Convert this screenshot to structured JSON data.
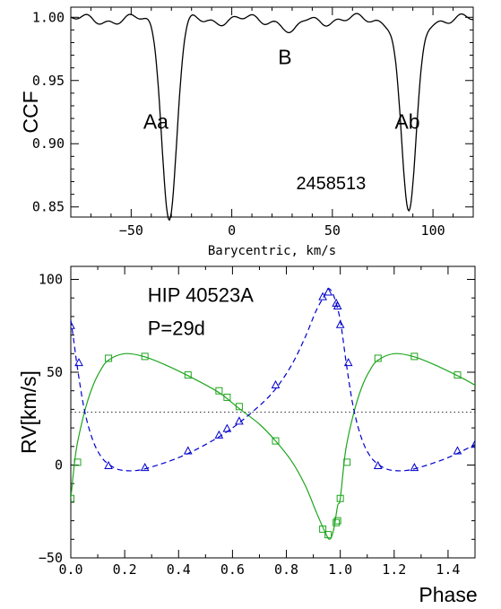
{
  "chart_data": [
    {
      "type": "line",
      "ylabel": "CCF",
      "xlabel": "Barycentric, km/s",
      "xlim": [
        -80,
        120
      ],
      "ylim": [
        0.842,
        1.008
      ],
      "xticks": [
        -50,
        0,
        50,
        100
      ],
      "yticks": [
        0.85,
        0.9,
        0.95,
        1.0
      ],
      "xtick_labels": [
        "−50",
        "0",
        "50",
        "100"
      ],
      "ytick_labels": [
        "0.85",
        "0.90",
        "0.95",
        "1.00"
      ],
      "grid": false,
      "baseline": 1.0,
      "components": [
        {
          "name": "Aa",
          "center": -31,
          "depth": 0.158,
          "sigma": 3.6
        },
        {
          "name": "B",
          "center": 30,
          "depth": 0.012,
          "sigma": 3.0
        },
        {
          "name": "Ab",
          "center": 88,
          "depth": 0.152,
          "sigma": 3.8
        }
      ],
      "annotations": [
        {
          "text": "Aa",
          "x": -44,
          "y": 0.912
        },
        {
          "text": "B",
          "x": 23,
          "y": 0.963
        },
        {
          "text": "Ab",
          "x": 81,
          "y": 0.912
        },
        {
          "text": "2458513",
          "x": 32,
          "y": 0.864
        }
      ],
      "colors": {
        "curve": "#000000"
      }
    },
    {
      "type": "line",
      "ylabel": "RV[km/s]",
      "xlabel": "Phase",
      "xlim": [
        0.0,
        1.5
      ],
      "ylim": [
        -50,
        107
      ],
      "xticks": [
        0.0,
        0.2,
        0.4,
        0.6,
        0.8,
        1.0,
        1.2,
        1.4
      ],
      "yticks": [
        -50,
        0,
        50,
        100
      ],
      "xtick_labels": [
        "0.0",
        "0.2",
        "0.4",
        "0.6",
        "0.8",
        "1.0",
        "1.2",
        "1.4"
      ],
      "ytick_labels": [
        "−50",
        "0",
        "50",
        "100"
      ],
      "grid": false,
      "title_lines": [
        "HIP 40523A",
        "P=29d"
      ],
      "systemic_velocity": 28.5,
      "series": [
        {
          "color": "#1ea51e",
          "marker": "square",
          "line": "solid",
          "curve": [
            [
              0.0,
              -18
            ],
            [
              0.02,
              8
            ],
            [
              0.05,
              28
            ],
            [
              0.08,
              42
            ],
            [
              0.11,
              51
            ],
            [
              0.14,
              56.5
            ],
            [
              0.2,
              60
            ],
            [
              0.27,
              58.5
            ],
            [
              0.35,
              54
            ],
            [
              0.45,
              47
            ],
            [
              0.55,
              39
            ],
            [
              0.62,
              31
            ],
            [
              0.7,
              22
            ],
            [
              0.76,
              13
            ],
            [
              0.82,
              2
            ],
            [
              0.87,
              -11
            ],
            [
              0.91,
              -25
            ],
            [
              0.94,
              -35
            ],
            [
              0.96,
              -40
            ],
            [
              0.975,
              -35
            ],
            [
              0.99,
              -22
            ],
            [
              1.0,
              -18
            ],
            [
              1.02,
              8
            ],
            [
              1.05,
              28
            ],
            [
              1.08,
              42
            ],
            [
              1.11,
              51
            ],
            [
              1.14,
              56.5
            ],
            [
              1.2,
              60
            ],
            [
              1.27,
              58.5
            ],
            [
              1.35,
              54
            ],
            [
              1.45,
              47
            ],
            [
              1.5,
              43
            ]
          ],
          "points": [
            [
              0.0,
              -18
            ],
            [
              0.025,
              1.5
            ],
            [
              0.14,
              57.5
            ],
            [
              0.275,
              58.5
            ],
            [
              0.435,
              48.5
            ],
            [
              0.55,
              40
            ],
            [
              0.58,
              36.5
            ],
            [
              0.625,
              31.5
            ],
            [
              0.76,
              13
            ],
            [
              0.935,
              -34.5
            ],
            [
              0.955,
              -37.5
            ],
            [
              0.985,
              -31
            ],
            [
              0.99,
              -30
            ],
            [
              1.0,
              -18
            ],
            [
              1.025,
              1.5
            ],
            [
              1.14,
              57.5
            ],
            [
              1.275,
              58.5
            ],
            [
              1.435,
              48.5
            ]
          ]
        },
        {
          "color": "#0000cc",
          "marker": "triangle",
          "line": "dashed",
          "curve": [
            [
              0.0,
              78
            ],
            [
              0.01,
              68
            ],
            [
              0.025,
              52
            ],
            [
              0.05,
              30
            ],
            [
              0.08,
              14
            ],
            [
              0.11,
              5
            ],
            [
              0.14,
              0.5
            ],
            [
              0.18,
              -2.5
            ],
            [
              0.24,
              -3
            ],
            [
              0.3,
              -1
            ],
            [
              0.4,
              4
            ],
            [
              0.5,
              11
            ],
            [
              0.6,
              20
            ],
            [
              0.7,
              32
            ],
            [
              0.76,
              41
            ],
            [
              0.82,
              54
            ],
            [
              0.87,
              69
            ],
            [
              0.91,
              83
            ],
            [
              0.94,
              91
            ],
            [
              0.955,
              95
            ],
            [
              0.97,
              93
            ],
            [
              0.985,
              87
            ],
            [
              1.0,
              78
            ],
            [
              1.01,
              68
            ],
            [
              1.025,
              52
            ],
            [
              1.05,
              30
            ],
            [
              1.08,
              14
            ],
            [
              1.11,
              5
            ],
            [
              1.14,
              0.5
            ],
            [
              1.18,
              -2.5
            ],
            [
              1.24,
              -3
            ],
            [
              1.3,
              -1
            ],
            [
              1.4,
              4
            ],
            [
              1.5,
              11
            ]
          ],
          "points": [
            [
              0.0,
              75
            ],
            [
              0.03,
              55
            ],
            [
              0.14,
              -0.5
            ],
            [
              0.275,
              -1.5
            ],
            [
              0.435,
              7.5
            ],
            [
              0.55,
              16
            ],
            [
              0.58,
              19.5
            ],
            [
              0.625,
              23.5
            ],
            [
              0.76,
              43
            ],
            [
              0.935,
              90.5
            ],
            [
              0.955,
              93
            ],
            [
              0.985,
              87
            ],
            [
              0.99,
              85.5
            ],
            [
              1.0,
              75.5
            ],
            [
              1.03,
              55
            ],
            [
              1.14,
              -0.5
            ],
            [
              1.275,
              -1.5
            ],
            [
              1.435,
              7.5
            ],
            [
              1.5,
              11
            ]
          ]
        }
      ]
    }
  ]
}
